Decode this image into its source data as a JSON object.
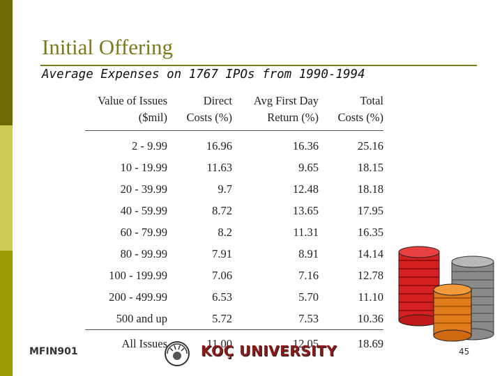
{
  "slide": {
    "title": "Initial Offering",
    "subtitle": "Average Expenses on 1767 IPOs from 1990-1994"
  },
  "table": {
    "headers_line1": [
      "Value of Issues",
      "Direct",
      "Avg First Day",
      "Total"
    ],
    "headers_line2": [
      "($mil)",
      "Costs (%)",
      "Return (%)",
      "Costs (%)"
    ],
    "rows": [
      [
        "2  -  9.99",
        "16.96",
        "16.36",
        "25.16"
      ],
      [
        "10  -  19.99",
        "11.63",
        "9.65",
        "18.15"
      ],
      [
        "20  -  39.99",
        "9.7",
        "12.48",
        "18.18"
      ],
      [
        "40  -  59.99",
        "8.72",
        "13.65",
        "17.95"
      ],
      [
        "60  -  79.99",
        "8.2",
        "11.31",
        "16.35"
      ],
      [
        "80  -  99.99",
        "7.91",
        "8.91",
        "14.14"
      ],
      [
        "100  -  199.99",
        "7.06",
        "7.16",
        "12.78"
      ],
      [
        "200  -  499.99",
        "6.53",
        "5.70",
        "11.10"
      ],
      [
        "500 and up",
        "5.72",
        "7.53",
        "10.36"
      ]
    ],
    "total_row": [
      "All Issues",
      "11.00",
      "12.05",
      "18.69"
    ]
  },
  "footer": {
    "course_code": "MFIN901",
    "university_name": "KOÇ UNIVERSITY",
    "page_number": "45"
  },
  "colors": {
    "sidebar_dark": "#6b6b00",
    "sidebar_light": "#cccc55",
    "sidebar_mid": "#999900",
    "title": "#7a7a1a",
    "logo_red": "#8b1a1a"
  },
  "icons": {
    "logo": "koc-university-seal-icon",
    "decoration": "coin-stacks-illustration"
  }
}
